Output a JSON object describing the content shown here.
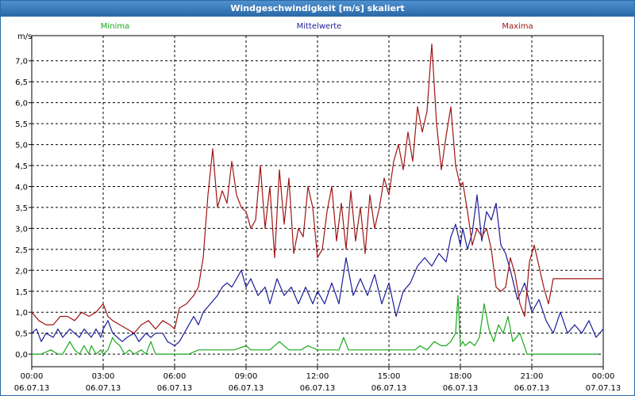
{
  "window": {
    "title": "Windgeschwindigkeit [m/s] skaliert"
  },
  "colors": {
    "minima": "#19a91c",
    "mittelwerte": "#1d1d9a",
    "maxima": "#a01414",
    "titlebar": "#2f70b0",
    "grid": "#000000"
  },
  "chart_data": {
    "type": "line",
    "title": "Windgeschwindigkeit [m/s] skaliert",
    "ylabel": "m/s",
    "xlabel": "",
    "ylim": [
      -0.3,
      7.6
    ],
    "xlim": [
      0,
      24
    ],
    "y_ticks": [
      "0,0",
      "0,5",
      "1,0",
      "1,5",
      "2,0",
      "2,5",
      "3,0",
      "3,5",
      "4,0",
      "4,5",
      "5,0",
      "5,5",
      "6,0",
      "6,5",
      "7,0"
    ],
    "x_ticks": [
      {
        "time": "00:00",
        "date": "06.07.13"
      },
      {
        "time": "03:00",
        "date": "06.07.13"
      },
      {
        "time": "06:00",
        "date": "06.07.13"
      },
      {
        "time": "09:00",
        "date": "06.07.13"
      },
      {
        "time": "12:00",
        "date": "06.07.13"
      },
      {
        "time": "15:00",
        "date": "06.07.13"
      },
      {
        "time": "18:00",
        "date": "06.07.13"
      },
      {
        "time": "21:00",
        "date": "06.07.13"
      },
      {
        "time": "00:00",
        "date": "07.07.13"
      }
    ],
    "grid": true,
    "x_unit": "hours",
    "series": [
      {
        "name": "Minima",
        "key": "minima",
        "x": [
          0,
          0.4,
          0.8,
          1.1,
          1.3,
          1.5,
          1.6,
          1.8,
          2.0,
          2.2,
          2.4,
          2.5,
          2.7,
          2.9,
          3.0,
          3.2,
          3.4,
          3.5,
          3.7,
          3.9,
          4.1,
          4.3,
          4.6,
          4.8,
          5.0,
          5.2,
          5.5,
          5.7,
          6.0,
          6.3,
          6.6,
          7.0,
          7.5,
          8.0,
          8.5,
          9.0,
          9.2,
          9.5,
          9.8,
          10.0,
          10.4,
          10.8,
          11.1,
          11.3,
          11.6,
          12.0,
          12.5,
          12.9,
          13.1,
          13.3,
          13.7,
          14.0,
          14.4,
          14.8,
          15.2,
          15.5,
          15.8,
          16.1,
          16.3,
          16.6,
          16.9,
          17.2,
          17.4,
          17.6,
          17.8,
          17.9,
          18.0,
          18.1,
          18.2,
          18.4,
          18.6,
          18.8,
          19.0,
          19.2,
          19.4,
          19.6,
          19.8,
          20.0,
          20.2,
          20.5,
          20.8,
          21.0,
          21.4,
          21.8,
          22.2,
          22.6,
          23.0,
          23.4,
          23.8
        ],
        "values": [
          0.0,
          0.0,
          0.1,
          0.0,
          0.0,
          0.2,
          0.3,
          0.1,
          0.0,
          0.2,
          0.0,
          0.2,
          0.0,
          0.1,
          0.0,
          0.1,
          0.4,
          0.3,
          0.2,
          0.0,
          0.1,
          0.0,
          0.1,
          0.0,
          0.3,
          0.0,
          0.0,
          0.0,
          0.0,
          0.0,
          0.0,
          0.1,
          0.1,
          0.1,
          0.1,
          0.2,
          0.1,
          0.1,
          0.1,
          0.1,
          0.3,
          0.1,
          0.1,
          0.1,
          0.2,
          0.1,
          0.1,
          0.1,
          0.4,
          0.1,
          0.1,
          0.1,
          0.1,
          0.1,
          0.1,
          0.1,
          0.1,
          0.1,
          0.2,
          0.1,
          0.3,
          0.2,
          0.2,
          0.3,
          0.5,
          1.4,
          0.2,
          0.3,
          0.2,
          0.3,
          0.2,
          0.4,
          1.2,
          0.6,
          0.3,
          0.7,
          0.5,
          0.9,
          0.3,
          0.5,
          0.0,
          0.0,
          0.0,
          0.0,
          0.0,
          0.0,
          0.0,
          0.0,
          0.0
        ]
      },
      {
        "name": "Mittelwerte",
        "key": "mittelwerte",
        "x": [
          0,
          0.2,
          0.4,
          0.6,
          0.9,
          1.1,
          1.3,
          1.6,
          1.8,
          2.0,
          2.2,
          2.5,
          2.7,
          2.9,
          3.0,
          3.2,
          3.4,
          3.6,
          3.8,
          4.0,
          4.3,
          4.5,
          4.8,
          5.0,
          5.2,
          5.5,
          5.7,
          6.0,
          6.2,
          6.5,
          6.8,
          7.0,
          7.2,
          7.5,
          7.8,
          8.0,
          8.2,
          8.4,
          8.6,
          8.8,
          9.0,
          9.2,
          9.5,
          9.8,
          10.0,
          10.3,
          10.6,
          10.9,
          11.2,
          11.5,
          11.8,
          12.0,
          12.3,
          12.6,
          12.9,
          13.2,
          13.5,
          13.8,
          14.1,
          14.4,
          14.7,
          15.0,
          15.3,
          15.6,
          15.9,
          16.2,
          16.5,
          16.8,
          17.1,
          17.4,
          17.6,
          17.8,
          18.0,
          18.1,
          18.3,
          18.5,
          18.7,
          18.9,
          19.1,
          19.3,
          19.5,
          19.7,
          19.9,
          20.1,
          20.4,
          20.7,
          21.0,
          21.3,
          21.6,
          21.9,
          22.2,
          22.5,
          22.8,
          23.1,
          23.4,
          23.7,
          24.0
        ],
        "values": [
          0.5,
          0.6,
          0.3,
          0.5,
          0.4,
          0.6,
          0.4,
          0.6,
          0.5,
          0.4,
          0.6,
          0.4,
          0.6,
          0.4,
          0.6,
          0.8,
          0.5,
          0.4,
          0.3,
          0.4,
          0.5,
          0.3,
          0.5,
          0.4,
          0.5,
          0.5,
          0.3,
          0.2,
          0.3,
          0.6,
          0.9,
          0.7,
          1.0,
          1.2,
          1.4,
          1.6,
          1.7,
          1.6,
          1.8,
          2.0,
          1.6,
          1.8,
          1.4,
          1.6,
          1.2,
          1.8,
          1.4,
          1.6,
          1.2,
          1.6,
          1.2,
          1.5,
          1.2,
          1.7,
          1.2,
          2.3,
          1.4,
          1.8,
          1.4,
          1.9,
          1.2,
          1.7,
          0.9,
          1.5,
          1.7,
          2.1,
          2.3,
          2.1,
          2.4,
          2.2,
          2.8,
          3.1,
          2.6,
          3.0,
          2.5,
          2.9,
          3.8,
          2.7,
          3.4,
          3.2,
          3.6,
          2.6,
          2.4,
          2.0,
          1.3,
          1.7,
          1.0,
          1.3,
          0.8,
          0.5,
          1.0,
          0.5,
          0.7,
          0.5,
          0.8,
          0.4,
          0.6
        ]
      },
      {
        "name": "Maxima",
        "key": "maxima",
        "x": [
          0,
          0.3,
          0.6,
          0.9,
          1.2,
          1.5,
          1.8,
          2.1,
          2.4,
          2.7,
          3.0,
          3.2,
          3.4,
          3.7,
          4.0,
          4.3,
          4.6,
          4.9,
          5.2,
          5.5,
          5.8,
          6.0,
          6.2,
          6.5,
          6.8,
          7.0,
          7.2,
          7.4,
          7.6,
          7.8,
          8.0,
          8.2,
          8.4,
          8.6,
          8.8,
          9.0,
          9.2,
          9.4,
          9.6,
          9.8,
          10.0,
          10.2,
          10.4,
          10.6,
          10.8,
          11.0,
          11.2,
          11.4,
          11.6,
          11.8,
          12.0,
          12.2,
          12.4,
          12.6,
          12.8,
          13.0,
          13.2,
          13.4,
          13.6,
          13.8,
          14.0,
          14.2,
          14.4,
          14.6,
          14.8,
          15.0,
          15.2,
          15.4,
          15.6,
          15.8,
          16.0,
          16.2,
          16.4,
          16.6,
          16.8,
          17.0,
          17.2,
          17.4,
          17.6,
          17.8,
          18.0,
          18.1,
          18.3,
          18.5,
          18.7,
          18.9,
          19.1,
          19.3,
          19.5,
          19.7,
          19.9,
          20.1,
          20.3,
          20.5,
          20.7,
          20.9,
          21.1,
          21.3,
          21.5,
          21.7,
          21.9,
          22.1,
          22.3,
          22.5,
          22.7,
          22.9,
          23.1,
          23.3,
          23.5,
          23.7,
          24.0
        ],
        "values": [
          1.0,
          0.8,
          0.7,
          0.7,
          0.9,
          0.9,
          0.8,
          1.0,
          0.9,
          1.0,
          1.2,
          0.9,
          0.8,
          0.7,
          0.6,
          0.5,
          0.7,
          0.8,
          0.6,
          0.8,
          0.7,
          0.6,
          1.1,
          1.2,
          1.4,
          1.6,
          2.3,
          3.8,
          4.9,
          3.5,
          3.9,
          3.6,
          4.6,
          3.8,
          3.5,
          3.4,
          3.0,
          3.2,
          4.5,
          3.0,
          4.0,
          2.3,
          4.4,
          3.1,
          4.2,
          2.4,
          3.0,
          2.8,
          4.0,
          3.5,
          2.3,
          2.5,
          3.4,
          4.0,
          2.7,
          3.6,
          2.5,
          3.9,
          2.7,
          3.5,
          2.4,
          3.8,
          3.0,
          3.5,
          4.2,
          3.8,
          4.6,
          5.0,
          4.4,
          5.3,
          4.6,
          5.9,
          5.3,
          5.8,
          7.4,
          5.5,
          4.4,
          5.2,
          5.9,
          4.5,
          4.0,
          4.1,
          3.4,
          2.6,
          3.0,
          2.8,
          3.0,
          2.5,
          1.6,
          1.5,
          1.6,
          2.3,
          1.9,
          1.2,
          0.9,
          2.2,
          2.6,
          2.1,
          1.6,
          1.2,
          1.8,
          1.8,
          1.8,
          1.8,
          1.8,
          1.8,
          1.8,
          1.8,
          1.8,
          1.8,
          1.8
        ]
      }
    ]
  }
}
